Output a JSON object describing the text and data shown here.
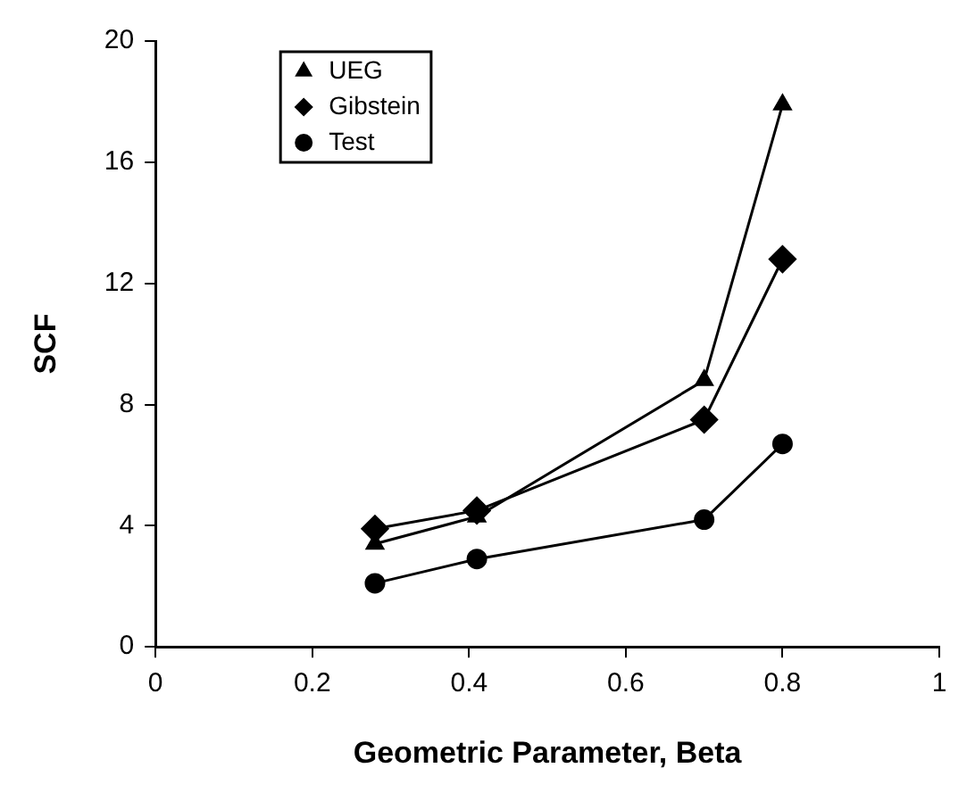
{
  "chart_data": {
    "type": "line",
    "xlabel": "Geometric Parameter, Beta",
    "ylabel": "SCF",
    "x": [
      0.28,
      0.41,
      0.7,
      0.8
    ],
    "xlim": [
      0,
      1
    ],
    "xticks": [
      0,
      0.2,
      0.4,
      0.6,
      0.8,
      1
    ],
    "ylim": [
      0,
      20
    ],
    "yticks": [
      0,
      4,
      8,
      12,
      16,
      20
    ],
    "grid": false,
    "legend": "top left",
    "line_style": "solid",
    "series": [
      {
        "name": "UEG",
        "color": "#000000",
        "marker": "triangle",
        "values": [
          3.4,
          4.3,
          8.8,
          17.9
        ]
      },
      {
        "name": "Gibstein",
        "color": "#000000",
        "marker": "diamond",
        "values": [
          3.9,
          4.5,
          7.5,
          12.8
        ]
      },
      {
        "name": "Test",
        "color": "#000000",
        "marker": "circle",
        "values": [
          2.1,
          2.9,
          4.2,
          6.7
        ]
      }
    ]
  }
}
